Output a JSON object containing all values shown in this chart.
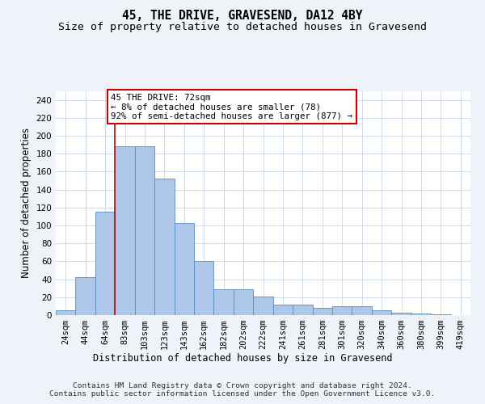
{
  "title": "45, THE DRIVE, GRAVESEND, DA12 4BY",
  "subtitle": "Size of property relative to detached houses in Gravesend",
  "xlabel": "Distribution of detached houses by size in Gravesend",
  "ylabel": "Number of detached properties",
  "categories": [
    "24sqm",
    "44sqm",
    "64sqm",
    "83sqm",
    "103sqm",
    "123sqm",
    "143sqm",
    "162sqm",
    "182sqm",
    "202sqm",
    "222sqm",
    "241sqm",
    "261sqm",
    "281sqm",
    "301sqm",
    "320sqm",
    "340sqm",
    "360sqm",
    "380sqm",
    "399sqm",
    "419sqm"
  ],
  "bar_values": [
    5,
    42,
    115,
    188,
    188,
    152,
    103,
    60,
    29,
    29,
    21,
    12,
    12,
    8,
    10,
    10,
    5,
    3,
    2,
    1,
    0
  ],
  "bar_color": "#aec6e8",
  "bar_edge_color": "#5a8fc0",
  "ylim": [
    0,
    250
  ],
  "yticks": [
    0,
    20,
    40,
    60,
    80,
    100,
    120,
    140,
    160,
    180,
    200,
    220,
    240
  ],
  "property_line_x": 2.5,
  "property_line_color": "#cc0000",
  "annotation_text": "45 THE DRIVE: 72sqm\n← 8% of detached houses are smaller (78)\n92% of semi-detached houses are larger (877) →",
  "annotation_box_color": "#ffffff",
  "annotation_box_edge_color": "#cc0000",
  "footer_text": "Contains HM Land Registry data © Crown copyright and database right 2024.\nContains public sector information licensed under the Open Government Licence v3.0.",
  "bg_color": "#eef2f9",
  "plot_bg_color": "#ffffff",
  "grid_color": "#c8d4e8",
  "title_fontsize": 10.5,
  "subtitle_fontsize": 9.5,
  "ylabel_fontsize": 8.5,
  "xlabel_fontsize": 8.5,
  "tick_fontsize": 7.5,
  "annotation_fontsize": 7.8,
  "footer_fontsize": 6.8
}
